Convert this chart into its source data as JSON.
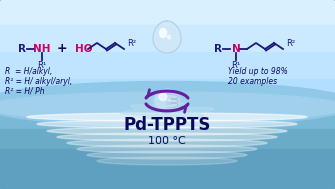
{
  "bg_top": "#c8e8f8",
  "bg_mid": "#a0cce8",
  "bg_bot": "#88b8d8",
  "water_surface": "#90c0dc",
  "title": "Pd-TPPTS",
  "subtitle": "100 °C",
  "title_color": "#0a0a5a",
  "subtitle_color": "#0a0a5a",
  "text_color": "#0a0a5a",
  "amine_color": "#cc0066",
  "n_color_right": "#cc0066",
  "chain_color": "#1a1a7a",
  "arrow_color": "#6020a0",
  "border_color": "#aaaaaa",
  "drop_color": "#d0e8f8",
  "globe_color": "#c0dff0",
  "ripple_color": "#78b0d0",
  "left_labels": [
    "R  = H/alkyl,",
    "R¹ = H/ alkyl/aryl,",
    "R² = H/ Ph"
  ],
  "right_labels": [
    "Yield up to 98%",
    "20 examples"
  ]
}
